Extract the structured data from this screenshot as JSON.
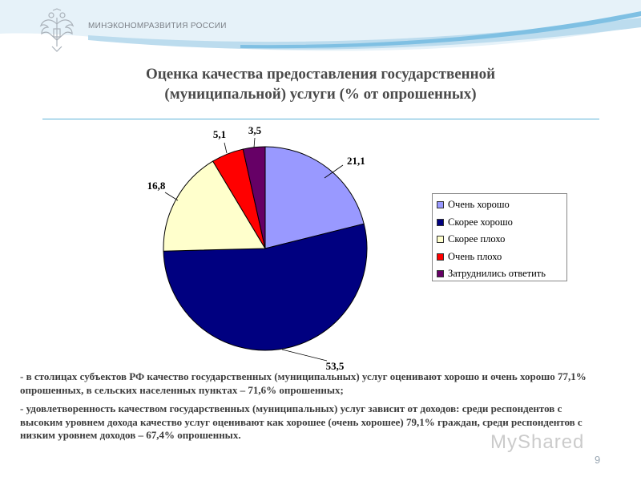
{
  "header": {
    "ministry": "МИНЭКОНОМРАЗВИТИЯ РОССИИ"
  },
  "icons": {
    "emblem": "double-headed-eagle-icon",
    "watermark": "myshared-logo-icon"
  },
  "chart_data": {
    "type": "pie",
    "title_lines": [
      "Оценка качества предоставления государственной",
      "(муниципальной) услуги (% от опрошенных)"
    ],
    "categories": [
      "Очень хорошо",
      "Скорее хорошо",
      "Скорее плохо",
      "Очень плохо",
      "Затруднились ответить"
    ],
    "values": [
      21.1,
      53.5,
      16.8,
      5.1,
      3.5
    ],
    "value_labels": [
      "21,1",
      "53,5",
      "16,8",
      "5,1",
      "3,5"
    ],
    "colors": [
      "#9999ff",
      "#000080",
      "#ffffcc",
      "#ff0000",
      "#660066"
    ],
    "legend_position": "right"
  },
  "notes": [
    "- в столицах субъектов РФ качество государственных (муниципальных) услуг оценивают хорошо и очень хорошо 77,1% опрошенных, в сельских населенных пунктах – 71,6% опрошенных;",
    "- удовлетворенность качеством государственных (муниципальных) услуг зависит от доходов: среди респондентов с высоким уровнем дохода качество услуг оценивают как хорошее (очень хорошее) 79,1% граждан, среди респондентов с низким уровнем доходов – 67,4% опрошенных."
  ],
  "watermark": "MyShared",
  "page_number": "9"
}
